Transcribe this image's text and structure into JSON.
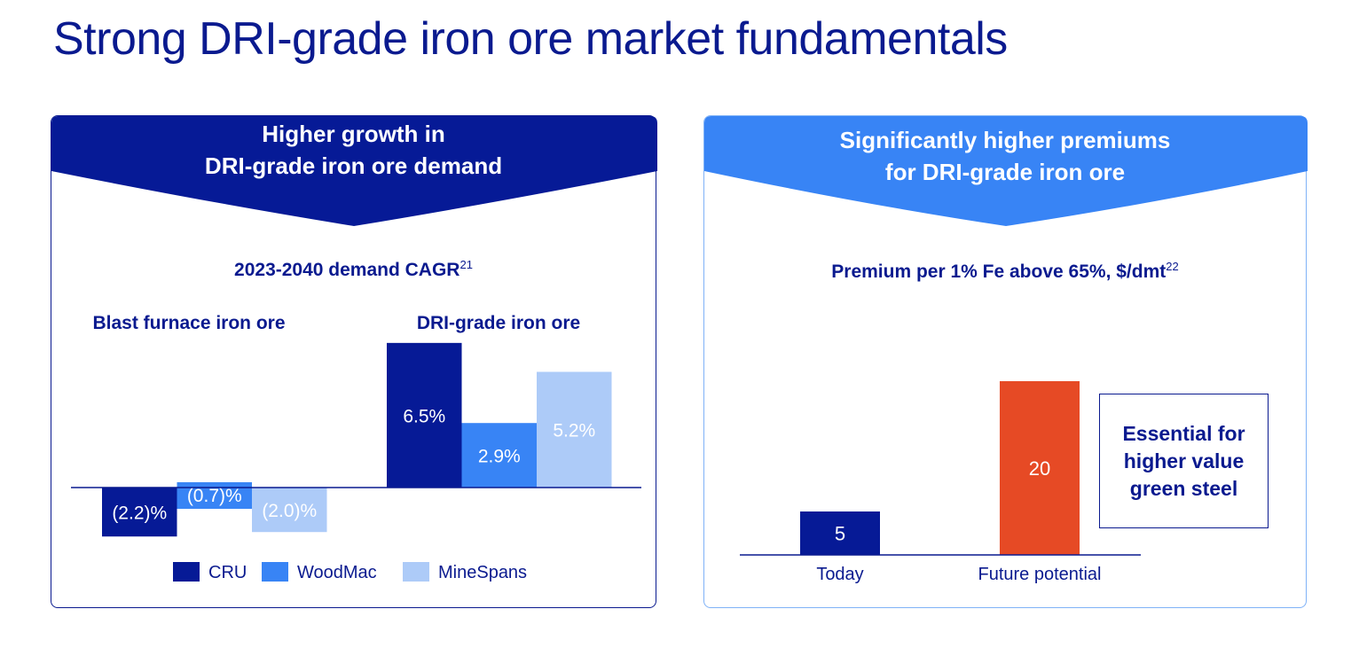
{
  "title": "Strong DRI-grade iron ore market fundamentals",
  "left_panel": {
    "header_line1": "Higher growth in",
    "header_line2": "DRI-grade iron ore demand",
    "subtitle": "2023-2040 demand CAGR",
    "footnote": "21"
  },
  "right_panel": {
    "header_line1": "Significantly higher premiums",
    "header_line2": "for DRI-grade iron ore",
    "subtitle": "Premium per 1% Fe above 65%, $/dmt",
    "footnote": "22",
    "note": "Essential for higher value green steel"
  },
  "colors": {
    "navy": "#061a96",
    "blue": "#3884f5",
    "light_blue": "#adcbf8",
    "orange": "#e64a25"
  },
  "chart_data": [
    {
      "type": "bar",
      "title": "2023-2040 demand CAGR",
      "categories": [
        "Blast furnace iron ore",
        "DRI-grade iron ore"
      ],
      "series": [
        {
          "name": "CRU",
          "values": [
            -2.2,
            6.5
          ],
          "labels": [
            "(2.2)%",
            "6.5%"
          ],
          "color": "#061a96"
        },
        {
          "name": "WoodMac",
          "values": [
            -0.7,
            2.9
          ],
          "labels": [
            "(0.7)%",
            "2.9%"
          ],
          "color": "#3884f5"
        },
        {
          "name": "MineSpans",
          "values": [
            -2.0,
            5.2
          ],
          "labels": [
            "(2.0)%",
            "5.2%"
          ],
          "color": "#adcbf8"
        }
      ],
      "legend": "bottom",
      "grid": false,
      "unit": "%"
    },
    {
      "type": "bar",
      "title": "Premium per 1% Fe above 65%, $/dmt",
      "categories": [
        "Today",
        "Future potential"
      ],
      "values": [
        5,
        20
      ],
      "colors": [
        "#061a96",
        "#e64a25"
      ],
      "grid": false
    }
  ]
}
